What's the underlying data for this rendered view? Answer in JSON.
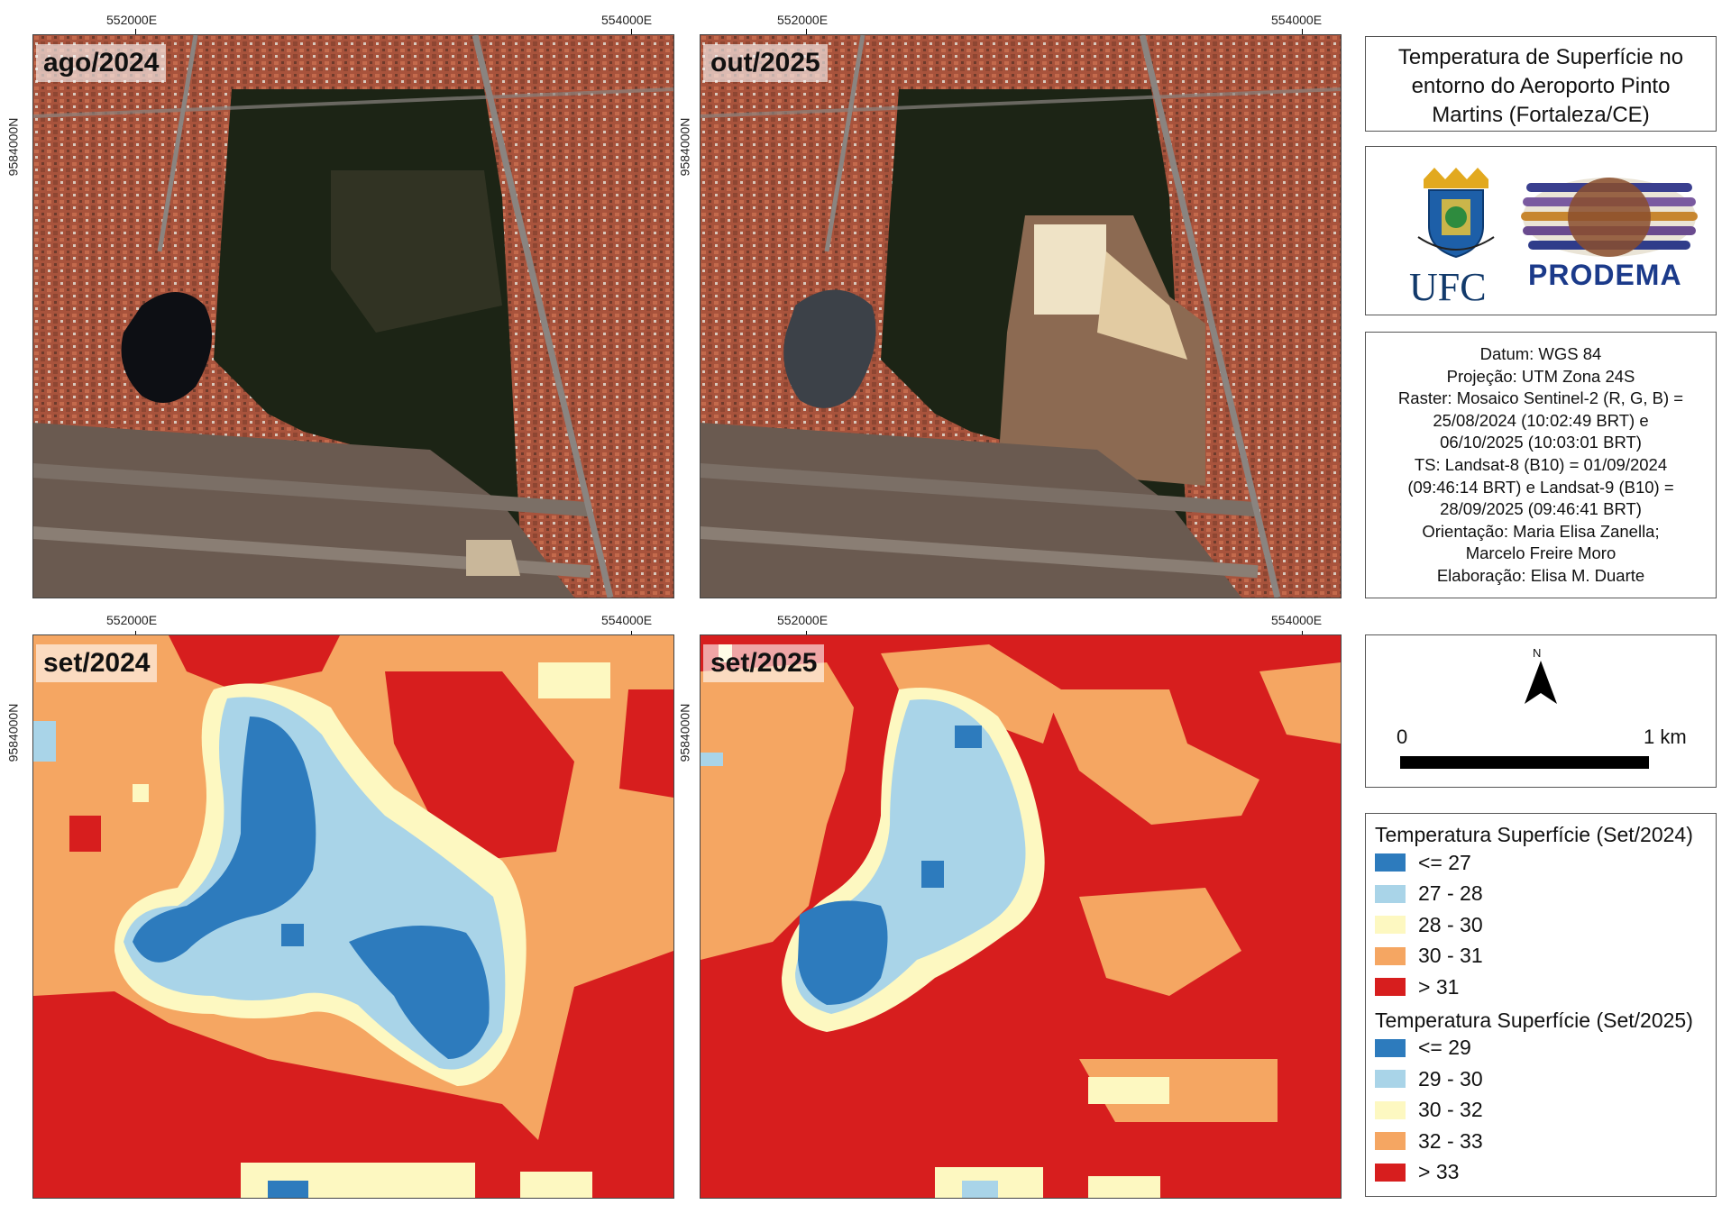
{
  "coordinates": {
    "easting_left": "552000E",
    "easting_right": "554000E",
    "northing": "9584000N"
  },
  "panels": [
    {
      "label": "ago/2024",
      "type": "satellite"
    },
    {
      "label": "out/2025",
      "type": "satellite"
    },
    {
      "label": "set/2024",
      "type": "temperature"
    },
    {
      "label": "set/2025",
      "type": "temperature"
    }
  ],
  "title": "Temperatura de Superfície no entorno do Aeroporto Pinto Martins (Fortaleza/CE)",
  "logos": {
    "ufc": "UFC",
    "prodema": "PRODEMA"
  },
  "metadata": [
    "Datum: WGS 84",
    "Projeção: UTM Zona 24S",
    "Raster: Mosaico Sentinel-2 (R, G, B) =",
    "25/08/2024 (10:02:49 BRT) e",
    "06/10/2025 (10:03:01 BRT)",
    "TS: Landsat-8 (B10) = 01/09/2024",
    "(09:46:14 BRT) e Landsat-9 (B10) =",
    "28/09/2025 (09:46:41 BRT)",
    "Orientação: Maria Elisa Zanella;",
    "Marcelo Freire Moro",
    "Elaboração: Elisa M. Duarte"
  ],
  "north_label": "N",
  "scale": {
    "start": "0",
    "end": "1 km"
  },
  "legend_2024": {
    "title": "Temperatura Superfície (Set/2024)",
    "classes": [
      {
        "label": "<= 27",
        "color": "#2d7bbd"
      },
      {
        "label": "27 - 28",
        "color": "#a9d4e8"
      },
      {
        "label": "28 - 30",
        "color": "#fdf8c1"
      },
      {
        "label": "30 - 31",
        "color": "#f5a662"
      },
      {
        "label": "> 31",
        "color": "#d71e1e"
      }
    ]
  },
  "legend_2025": {
    "title": "Temperatura Superfície (Set/2025)",
    "classes": [
      {
        "label": "<= 29",
        "color": "#2d7bbd"
      },
      {
        "label": "29 - 30",
        "color": "#a9d4e8"
      },
      {
        "label": "30 - 32",
        "color": "#fdf8c1"
      },
      {
        "label": "32 - 33",
        "color": "#f5a662"
      },
      {
        "label": "> 33",
        "color": "#d71e1e"
      }
    ]
  }
}
